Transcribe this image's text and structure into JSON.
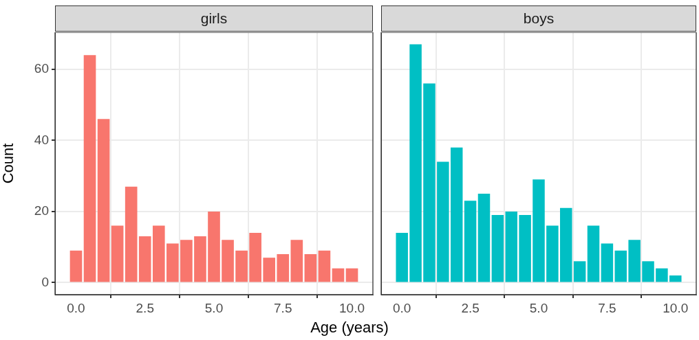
{
  "chart_data": [
    {
      "type": "histogram",
      "title": "girls",
      "xlabel": "Age (years)",
      "ylabel": "Count",
      "bins": [
        -0.25,
        0.25,
        0.75,
        1.25,
        1.75,
        2.25,
        2.75,
        3.25,
        3.75,
        4.25,
        4.75,
        5.25,
        5.75,
        6.25,
        6.75,
        7.25,
        7.75,
        8.25,
        8.75,
        9.25,
        9.75,
        10.25
      ],
      "values": [
        9,
        64,
        46,
        16,
        27,
        13,
        16,
        11,
        12,
        13,
        20,
        12,
        9,
        14,
        7,
        8,
        12,
        8,
        9,
        4,
        4
      ],
      "color": "#f8766d",
      "xlim": [
        -0.76,
        10.76
      ],
      "xticks": [
        {
          "value": 0,
          "label": "0.0"
        },
        {
          "value": 2.5,
          "label": "2.5"
        },
        {
          "value": 5,
          "label": "5.0"
        },
        {
          "value": 7.5,
          "label": "7.5"
        },
        {
          "value": 10,
          "label": "10.0"
        }
      ],
      "ylim": [
        -3.4,
        70.4
      ],
      "yticks": [
        0,
        20,
        40,
        60
      ],
      "grid": true
    },
    {
      "type": "histogram",
      "title": "boys",
      "bins": [
        -0.25,
        0.25,
        0.75,
        1.25,
        1.75,
        2.25,
        2.75,
        3.25,
        3.75,
        4.25,
        4.75,
        5.25,
        5.75,
        6.25,
        6.75,
        7.25,
        7.75,
        8.25,
        8.75,
        9.25,
        9.75,
        10.25
      ],
      "values": [
        14,
        67,
        56,
        34,
        38,
        23,
        25,
        19,
        20,
        19,
        29,
        16,
        21,
        6,
        16,
        11,
        9,
        12,
        6,
        4,
        2
      ],
      "color": "#00bfc4",
      "xlim": [
        -0.76,
        10.76
      ],
      "xticks": [
        {
          "value": 0,
          "label": "0.0"
        },
        {
          "value": 2.5,
          "label": "2.5"
        },
        {
          "value": 5,
          "label": "5.0"
        },
        {
          "value": 7.5,
          "label": "7.5"
        },
        {
          "value": 10,
          "label": "10.0"
        }
      ],
      "ylim": [
        -3.4,
        70.4
      ],
      "yticks": [
        0,
        20,
        40,
        60
      ],
      "grid": true,
      "tick_labels": "x"
    }
  ]
}
